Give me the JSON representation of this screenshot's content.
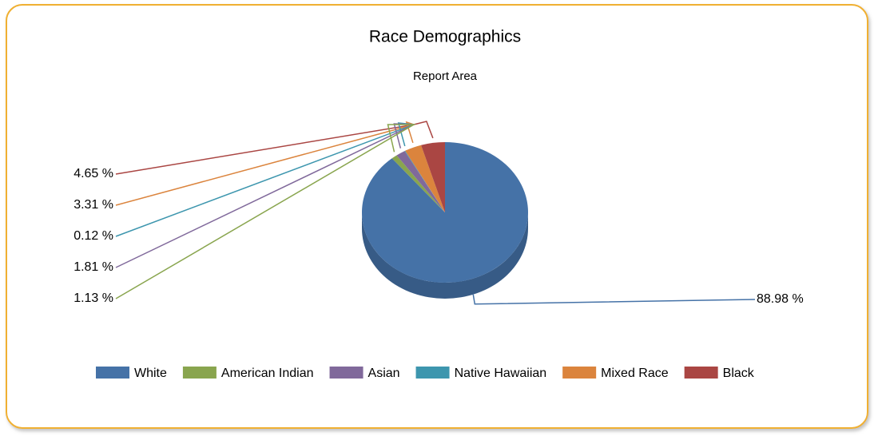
{
  "chart_data": {
    "type": "pie",
    "title": "Race Demographics",
    "subtitle": "Report Area",
    "categories": [
      "White",
      "American Indian",
      "Asian",
      "Native Hawaiian",
      "Mixed Race",
      "Black"
    ],
    "values": [
      88.98,
      1.13,
      1.81,
      0.12,
      3.31,
      4.65
    ],
    "value_labels": [
      "88.98 %",
      "1.13 %",
      "1.81 %",
      "0.12 %",
      "3.31 %",
      "4.65 %"
    ],
    "colors": [
      "#4572a7",
      "#89a54e",
      "#80699b",
      "#3d96ae",
      "#db843d",
      "#aa4643"
    ],
    "legend": "bottom"
  }
}
